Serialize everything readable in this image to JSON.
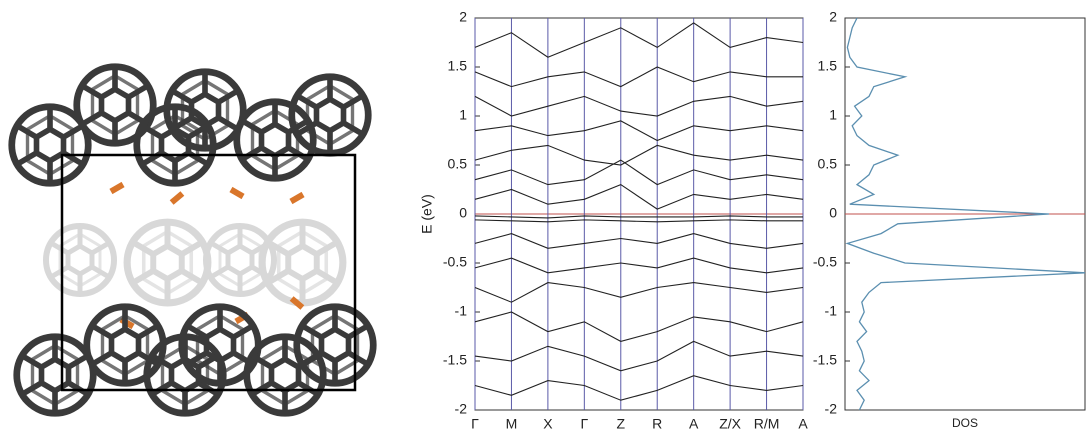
{
  "chart_data": [
    {
      "type": "band",
      "ylabel": "E (eV)",
      "categories": [
        "Γ",
        "M",
        "X",
        "Γ",
        "Z",
        "R",
        "A",
        "Z/X",
        "R/M",
        "A"
      ],
      "ylim": [
        -2,
        2
      ],
      "yticks": [
        -2,
        -1.5,
        -1,
        -0.5,
        0,
        0.5,
        1,
        1.5,
        2
      ],
      "color": "#222222",
      "path_color": "#5a5aa8",
      "reference": 0,
      "reference_color": "#c0504d",
      "series": [
        {
          "values": [
            -0.02,
            -0.03,
            -0.04,
            -0.02,
            -0.03,
            -0.03,
            -0.03,
            -0.02,
            -0.03,
            -0.03
          ]
        },
        {
          "values": [
            -0.06,
            -0.07,
            -0.08,
            -0.06,
            -0.07,
            -0.08,
            -0.07,
            -0.06,
            -0.07,
            -0.07
          ]
        },
        {
          "values": [
            0.15,
            0.25,
            0.1,
            0.15,
            0.3,
            0.05,
            0.2,
            0.15,
            0.2,
            0.15
          ]
        },
        {
          "values": [
            0.35,
            0.45,
            0.3,
            0.35,
            0.55,
            0.3,
            0.45,
            0.35,
            0.4,
            0.35
          ]
        },
        {
          "values": [
            0.55,
            0.65,
            0.7,
            0.55,
            0.5,
            0.7,
            0.6,
            0.55,
            0.6,
            0.55
          ]
        },
        {
          "values": [
            0.85,
            0.9,
            0.8,
            0.85,
            0.95,
            0.75,
            0.9,
            0.85,
            0.9,
            0.85
          ]
        },
        {
          "values": [
            1.2,
            1.0,
            1.1,
            1.2,
            1.05,
            1.0,
            1.15,
            1.2,
            1.1,
            1.15
          ]
        },
        {
          "values": [
            1.45,
            1.3,
            1.4,
            1.45,
            1.3,
            1.5,
            1.35,
            1.45,
            1.4,
            1.4
          ]
        },
        {
          "values": [
            1.7,
            1.85,
            1.6,
            1.75,
            1.9,
            1.7,
            1.95,
            1.7,
            1.8,
            1.75
          ]
        },
        {
          "values": [
            -0.3,
            -0.2,
            -0.35,
            -0.3,
            -0.25,
            -0.3,
            -0.2,
            -0.3,
            -0.35,
            -0.3
          ]
        },
        {
          "values": [
            -0.55,
            -0.45,
            -0.6,
            -0.55,
            -0.5,
            -0.55,
            -0.45,
            -0.55,
            -0.6,
            -0.55
          ]
        },
        {
          "values": [
            -0.75,
            -0.9,
            -0.7,
            -0.75,
            -0.85,
            -0.75,
            -0.7,
            -0.75,
            -0.8,
            -0.75
          ]
        },
        {
          "values": [
            -1.1,
            -1.0,
            -1.2,
            -1.1,
            -1.3,
            -1.2,
            -1.05,
            -1.1,
            -1.2,
            -1.1
          ]
        },
        {
          "values": [
            -1.45,
            -1.5,
            -1.35,
            -1.45,
            -1.6,
            -1.5,
            -1.3,
            -1.45,
            -1.4,
            -1.45
          ]
        },
        {
          "values": [
            -1.75,
            -1.85,
            -1.7,
            -1.75,
            -1.9,
            -1.8,
            -1.65,
            -1.75,
            -1.8,
            -1.75
          ]
        }
      ]
    },
    {
      "type": "dos",
      "xlabel": "DOS",
      "ylim": [
        -2,
        2
      ],
      "yticks": [
        -2,
        -1.5,
        -1,
        -0.5,
        0,
        0.5,
        1,
        1.5,
        2
      ],
      "xlim": [
        0,
        1
      ],
      "color": "#5b8fb0",
      "reference": 0,
      "reference_color": "#c0504d",
      "energies": [
        -2.0,
        -1.9,
        -1.8,
        -1.7,
        -1.6,
        -1.5,
        -1.4,
        -1.3,
        -1.2,
        -1.1,
        -1.0,
        -0.9,
        -0.8,
        -0.7,
        -0.6,
        -0.5,
        -0.4,
        -0.3,
        -0.2,
        -0.1,
        0.0,
        0.1,
        0.2,
        0.3,
        0.4,
        0.5,
        0.6,
        0.7,
        0.8,
        0.9,
        1.0,
        1.1,
        1.2,
        1.3,
        1.4,
        1.5,
        1.6,
        1.7,
        1.8,
        1.9,
        2.0
      ],
      "values": [
        0.06,
        0.08,
        0.05,
        0.1,
        0.06,
        0.08,
        0.07,
        0.05,
        0.09,
        0.06,
        0.08,
        0.07,
        0.1,
        0.15,
        1.0,
        0.25,
        0.12,
        0.01,
        0.15,
        0.22,
        0.85,
        0.02,
        0.12,
        0.05,
        0.1,
        0.12,
        0.22,
        0.1,
        0.05,
        0.03,
        0.07,
        0.04,
        0.1,
        0.12,
        0.25,
        0.05,
        0.02,
        0.01,
        0.02,
        0.03,
        0.05
      ]
    }
  ]
}
